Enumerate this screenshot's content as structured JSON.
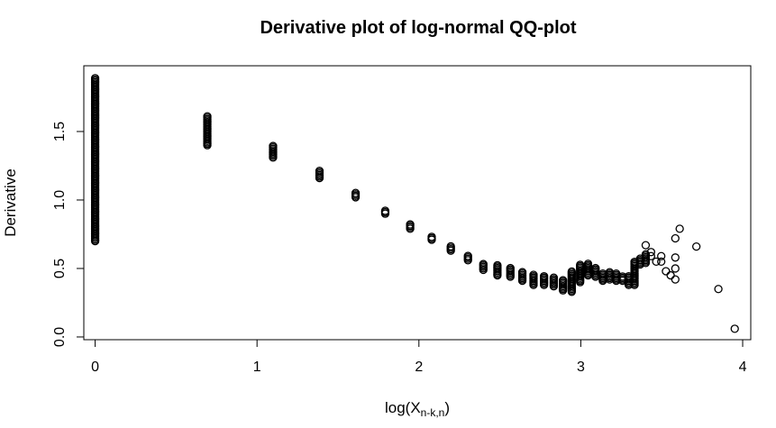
{
  "chart_data": {
    "type": "scatter",
    "title": "Derivative plot of log-normal QQ-plot",
    "xlabel": "log(X",
    "xlabel_subscript": "n-k,n",
    "xlabel_close": ")",
    "ylabel": "Derivative",
    "xlim": [
      -0.07,
      4.05
    ],
    "ylim": [
      -0.02,
      1.98
    ],
    "xticks": [
      0,
      1,
      2,
      3,
      4
    ],
    "xtick_labels": [
      "0",
      "1",
      "2",
      "3",
      "4"
    ],
    "yticks": [
      0.0,
      0.5,
      1.0,
      1.5
    ],
    "ytick_labels": [
      "0.0",
      "0.5",
      "1.0",
      "1.5"
    ],
    "grid": false,
    "marker": "open-circle",
    "color": "#000000",
    "columns": [
      {
        "x": 0.0,
        "ymin": 0.7,
        "ymax": 1.89
      },
      {
        "x": 0.693,
        "ymin": 1.4,
        "ymax": 1.62
      },
      {
        "x": 1.099,
        "ymin": 1.31,
        "ymax": 1.4
      },
      {
        "x": 1.386,
        "ymin": 1.16,
        "ymax": 1.22
      },
      {
        "x": 1.609,
        "ymin": 1.02,
        "ymax": 1.06
      },
      {
        "x": 1.792,
        "ymin": 0.9,
        "ymax": 0.93
      },
      {
        "x": 1.946,
        "ymin": 0.79,
        "ymax": 0.83
      },
      {
        "x": 2.079,
        "ymin": 0.71,
        "ymax": 0.74
      },
      {
        "x": 2.197,
        "ymin": 0.63,
        "ymax": 0.67
      },
      {
        "x": 2.303,
        "ymin": 0.56,
        "ymax": 0.6
      },
      {
        "x": 2.398,
        "ymin": 0.49,
        "ymax": 0.54
      },
      {
        "x": 2.485,
        "ymin": 0.45,
        "ymax": 0.53
      },
      {
        "x": 2.565,
        "ymin": 0.44,
        "ymax": 0.51
      },
      {
        "x": 2.639,
        "ymin": 0.41,
        "ymax": 0.48
      },
      {
        "x": 2.708,
        "ymin": 0.38,
        "ymax": 0.46
      },
      {
        "x": 2.773,
        "ymin": 0.38,
        "ymax": 0.45
      },
      {
        "x": 2.833,
        "ymin": 0.37,
        "ymax": 0.44
      },
      {
        "x": 2.89,
        "ymin": 0.34,
        "ymax": 0.42
      },
      {
        "x": 2.944,
        "ymin": 0.33,
        "ymax": 0.48
      },
      {
        "x": 2.996,
        "ymin": 0.4,
        "ymax": 0.53
      },
      {
        "x": 3.045,
        "ymin": 0.45,
        "ymax": 0.54
      },
      {
        "x": 3.091,
        "ymin": 0.44,
        "ymax": 0.51
      },
      {
        "x": 3.136,
        "ymin": 0.41,
        "ymax": 0.47
      },
      {
        "x": 3.178,
        "ymin": 0.42,
        "ymax": 0.48
      },
      {
        "x": 3.219,
        "ymin": 0.41,
        "ymax": 0.47
      },
      {
        "x": 3.258,
        "ymin": 0.41,
        "ymax": 0.45
      },
      {
        "x": 3.296,
        "ymin": 0.38,
        "ymax": 0.45
      },
      {
        "x": 3.332,
        "ymin": 0.38,
        "ymax": 0.55
      },
      {
        "x": 3.367,
        "ymin": 0.53,
        "ymax": 0.58
      },
      {
        "x": 3.401,
        "ymin": 0.54,
        "ymax": 0.61
      }
    ],
    "points": [
      {
        "x": 3.434,
        "y": 0.59
      },
      {
        "x": 3.434,
        "y": 0.62
      },
      {
        "x": 3.466,
        "y": 0.55
      },
      {
        "x": 3.497,
        "y": 0.55
      },
      {
        "x": 3.497,
        "y": 0.59
      },
      {
        "x": 3.526,
        "y": 0.48
      },
      {
        "x": 3.555,
        "y": 0.45
      },
      {
        "x": 3.584,
        "y": 0.42
      },
      {
        "x": 3.584,
        "y": 0.5
      },
      {
        "x": 3.584,
        "y": 0.58
      },
      {
        "x": 3.584,
        "y": 0.72
      },
      {
        "x": 3.611,
        "y": 0.79
      },
      {
        "x": 3.714,
        "y": 0.66
      },
      {
        "x": 3.401,
        "y": 0.67
      },
      {
        "x": 3.85,
        "y": 0.35
      },
      {
        "x": 3.951,
        "y": 0.06
      }
    ]
  }
}
